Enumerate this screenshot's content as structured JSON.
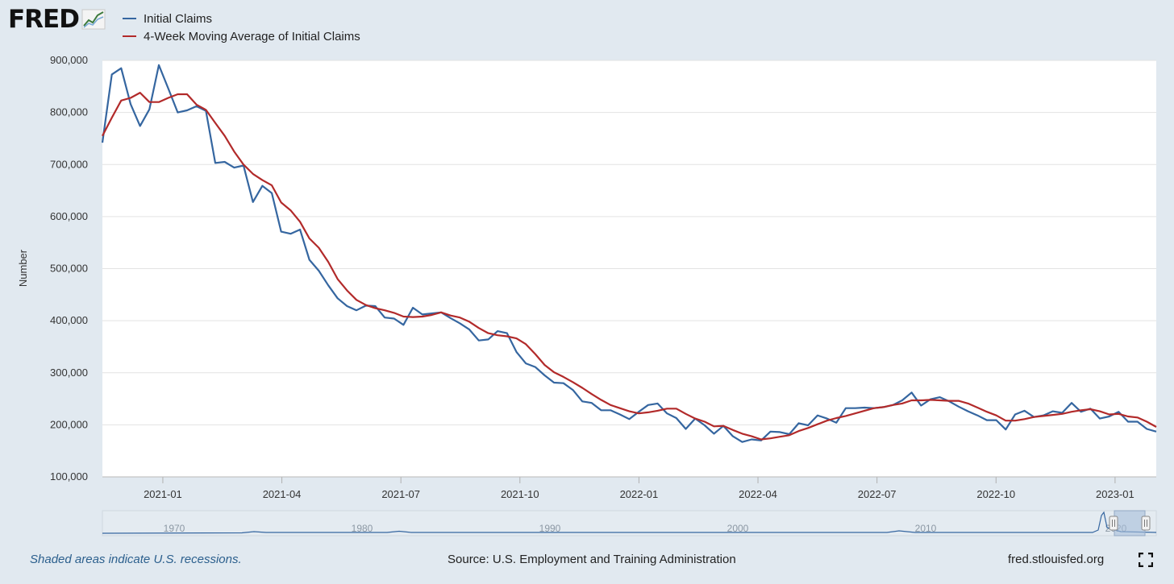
{
  "brand": {
    "logo_text": "FRED",
    "logo_icon": "line-chart-icon"
  },
  "legend": [
    {
      "label": "Initial Claims",
      "color": "#3566a0"
    },
    {
      "label": "4-Week Moving Average of Initial Claims",
      "color": "#b22a2a"
    }
  ],
  "chart_data": {
    "type": "line",
    "ylabel": "Number",
    "ylim": [
      100000,
      900000
    ],
    "y_ticks": [
      100000,
      200000,
      300000,
      400000,
      500000,
      600000,
      700000,
      800000,
      900000
    ],
    "y_tick_labels": [
      "100,000",
      "200,000",
      "300,000",
      "400,000",
      "500,000",
      "600,000",
      "700,000",
      "800,000",
      "900,000"
    ],
    "x_tick_labels": [
      "2021-01",
      "2021-04",
      "2021-07",
      "2021-10",
      "2022-01",
      "2022-04",
      "2022-07",
      "2022-10",
      "2023-01"
    ],
    "x_tick_weeks": [
      3,
      16,
      29,
      42,
      55,
      68,
      81,
      94,
      107
    ],
    "x_range_weeks": [
      -3.6,
      111.5
    ],
    "grid": true,
    "legend_position": "top-left",
    "series": [
      {
        "name": "Initial Claims",
        "color": "#3566a0",
        "values": [
          742000,
          873000,
          885000,
          816000,
          774000,
          806000,
          891000,
          846000,
          800000,
          804000,
          812000,
          803000,
          703000,
          705000,
          694000,
          698000,
          628000,
          659000,
          645000,
          571000,
          567000,
          575000,
          517000,
          496000,
          468000,
          443000,
          428000,
          420000,
          429000,
          428000,
          406000,
          404000,
          392000,
          425000,
          412000,
          414000,
          416000,
          405000,
          395000,
          383000,
          362000,
          364000,
          380000,
          376000,
          340000,
          318000,
          311000,
          295000,
          281000,
          280000,
          267000,
          245000,
          242000,
          228000,
          228000,
          220000,
          211000,
          225000,
          238000,
          241000,
          222000,
          213000,
          192000,
          212000,
          199000,
          183000,
          198000,
          178000,
          167000,
          172000,
          170000,
          187000,
          186000,
          182000,
          203000,
          199000,
          218000,
          212000,
          204000,
          232000,
          232000,
          233000,
          232000,
          234000,
          238000,
          247000,
          262000,
          237000,
          249000,
          253000,
          245000,
          235000,
          226000,
          218000,
          209000,
          209000,
          191000,
          220000,
          227000,
          215000,
          218000,
          226000,
          223000,
          242000,
          225000,
          231000,
          212000,
          216000,
          225000,
          206000,
          206000,
          192000,
          187000
        ],
        "start_week": -3.6,
        "end_week": 111.5
      },
      {
        "name": "4-Week Moving Average of Initial Claims",
        "color": "#b22a2a",
        "values": [
          755000,
          790000,
          823000,
          828000,
          838000,
          820000,
          820000,
          828000,
          835000,
          835000,
          815000,
          805000,
          780000,
          755000,
          725000,
          700000,
          682000,
          670000,
          660000,
          627000,
          612000,
          590000,
          558000,
          540000,
          513000,
          480000,
          458000,
          440000,
          430000,
          424000,
          420000,
          415000,
          408000,
          407000,
          408000,
          411000,
          416000,
          410000,
          406000,
          398000,
          386000,
          376000,
          372000,
          370000,
          366000,
          355000,
          336000,
          315000,
          301000,
          292000,
          282000,
          271000,
          259000,
          248000,
          238000,
          232000,
          226000,
          222000,
          224000,
          227000,
          231000,
          231000,
          221000,
          212000,
          206000,
          197000,
          198000,
          190000,
          183000,
          178000,
          172000,
          174000,
          177000,
          180000,
          188000,
          194000,
          201000,
          208000,
          213000,
          217000,
          222000,
          227000,
          232000,
          234000,
          238000,
          241000,
          247000,
          247000,
          248000,
          247000,
          246000,
          246000,
          241000,
          233000,
          225000,
          218000,
          208000,
          208000,
          211000,
          215000,
          217000,
          219000,
          221000,
          225000,
          228000,
          230000,
          226000,
          220000,
          221000,
          216000,
          214000,
          206000,
          196000
        ],
        "start_week": -3.6,
        "end_week": 111.5
      }
    ],
    "navigator": {
      "labels": [
        "1970",
        "1980",
        "1990",
        "2000",
        "2010",
        "2020"
      ]
    }
  },
  "footer": {
    "recessions_note": "Shaded areas indicate U.S. recessions.",
    "source": "Source: U.S. Employment and Training Administration",
    "site": "fred.stlouisfed.org",
    "fullscreen_icon": "fullscreen-icon"
  }
}
